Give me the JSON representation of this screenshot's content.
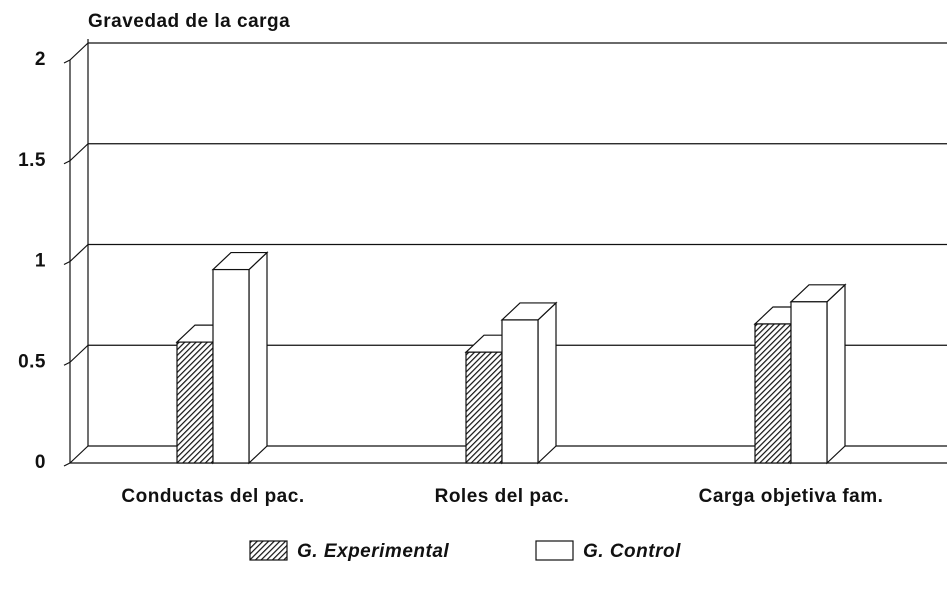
{
  "chart_data": {
    "type": "bar3d",
    "title": "Gravedad de la carga",
    "categories": [
      "Conductas del pac.",
      "Roles del pac.",
      "Carga objetiva fam."
    ],
    "series": [
      {
        "name": "G. Experimental",
        "color": "#222222",
        "pattern": "hatch",
        "values": [
          0.6,
          0.55,
          0.69
        ]
      },
      {
        "name": "G. Control",
        "color": "#ffffff",
        "values": [
          0.96,
          0.71,
          0.8
        ]
      }
    ],
    "ylim": [
      0,
      2
    ],
    "yticks": [
      0,
      0.5,
      1,
      1.5,
      2
    ],
    "grid": true
  }
}
